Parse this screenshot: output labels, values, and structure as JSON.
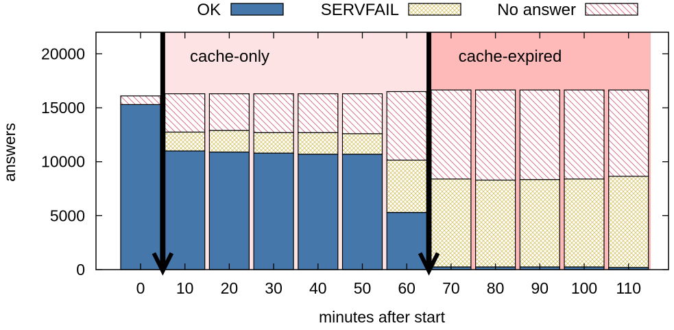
{
  "chart_data": {
    "type": "bar",
    "stacked": true,
    "xlabel": "minutes after start",
    "ylabel": "answers",
    "ylim": [
      0,
      22000
    ],
    "yticks": [
      0,
      5000,
      10000,
      15000,
      20000
    ],
    "ytick_labels": [
      "0",
      "5000",
      "10000",
      "15000",
      "20000"
    ],
    "categories": [
      "0",
      "10",
      "20",
      "30",
      "40",
      "50",
      "60",
      "70",
      "80",
      "90",
      "100",
      "110"
    ],
    "series": [
      {
        "name": "OK",
        "color": "#4577aa",
        "pattern": "solid",
        "values": [
          15300,
          11000,
          10900,
          10800,
          10700,
          10700,
          5300,
          250,
          250,
          250,
          250,
          200
        ]
      },
      {
        "name": "SERVFAIL",
        "color": "#d8c66e",
        "pattern": "crosshatch",
        "values": [
          0,
          1750,
          2000,
          1900,
          2000,
          1900,
          4850,
          8150,
          8050,
          8100,
          8150,
          8450
        ]
      },
      {
        "name": "No answer",
        "color": "#d9738c",
        "pattern": "diagonal",
        "values": [
          800,
          3550,
          3400,
          3600,
          3600,
          3700,
          6350,
          8250,
          8350,
          8300,
          8250,
          8000
        ]
      }
    ],
    "regions": [
      {
        "label": "cache-only",
        "from": 5,
        "to": 65,
        "color": "#fde3e3"
      },
      {
        "label": "cache-expired",
        "from": 65,
        "to": 115,
        "color": "#feb9b9"
      }
    ],
    "markers": [
      {
        "at": 5
      },
      {
        "at": 65
      }
    ],
    "legend_position": "top"
  }
}
